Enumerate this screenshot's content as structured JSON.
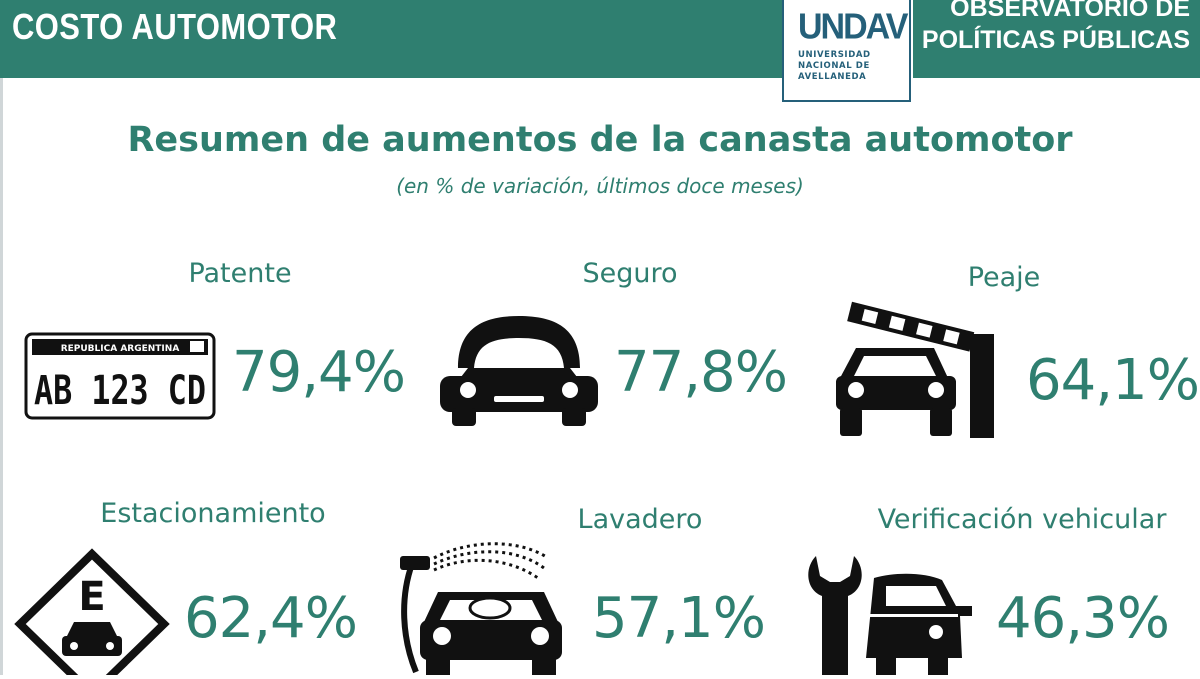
{
  "header": {
    "title": "COSTO AUTOMOTOR",
    "observatorio_line1": "OBSERVATORIO DE",
    "observatorio_line2": "POLÍTICAS PÚBLICAS"
  },
  "logo": {
    "mark": "UNDAV",
    "line1": "UNIVERSIDAD",
    "line2": "NACIONAL DE",
    "line3": "AVELLANEDA"
  },
  "title": "Resumen de aumentos de la canasta automotor",
  "subtitle": "(en % de variación, últimos doce meses)",
  "plate": {
    "country": "REPUBLICA ARGENTINA",
    "number": "AB 123 CD"
  },
  "parking_sign_letter": "E",
  "items": [
    {
      "label": "Patente",
      "value": "79,4%",
      "icon": "license-plate-icon"
    },
    {
      "label": "Seguro",
      "value": "77,8%",
      "icon": "protected-car-icon"
    },
    {
      "label": "Peaje",
      "value": "64,1%",
      "icon": "toll-barrier-car-icon"
    },
    {
      "label": "Estacionamiento",
      "value": "62,4%",
      "icon": "parking-sign-icon"
    },
    {
      "label": "Lavadero",
      "value": "57,1%",
      "icon": "car-wash-icon"
    },
    {
      "label": "Verificación vehicular",
      "value": "46,3%",
      "icon": "wrench-car-icon"
    }
  ],
  "colors": {
    "primary": "#2f7f70",
    "logo": "#25607a",
    "icon": "#111111"
  }
}
